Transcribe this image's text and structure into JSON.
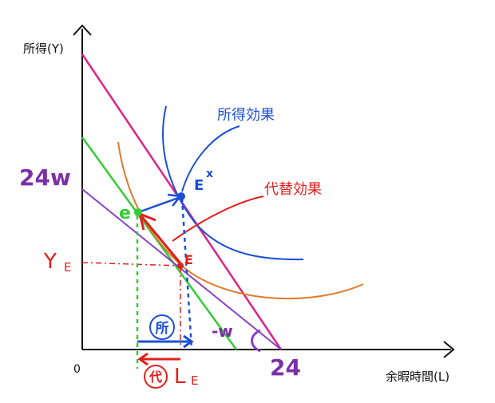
{
  "axes": {
    "y_label": "所得(Y)",
    "x_label": "余暇時間(L)",
    "origin": "0"
  },
  "labels": {
    "income_effect": "所得効果",
    "substitution_effect": "代替効果",
    "income_intercept": "24w",
    "leisure_intercept": "24",
    "slope": "-w",
    "point_ex": "E",
    "point_ex_sup": "x",
    "point_e_small": "e",
    "point_e": "E",
    "y_e_main": "Y",
    "y_e_sub": "E",
    "l_e_main": "L",
    "l_e_sub": "E",
    "circ_income": "所",
    "circ_substitution": "代"
  },
  "colors": {
    "income": "#1a4fd6",
    "substitution": "#e0201c",
    "pink_budget": "#e0218a",
    "green_budget": "#33cc33",
    "purple_budget": "#8a3fc8",
    "orange_curve": "#e07a2a",
    "label_purple": "#7b2fa8",
    "axis": "#111111"
  }
}
